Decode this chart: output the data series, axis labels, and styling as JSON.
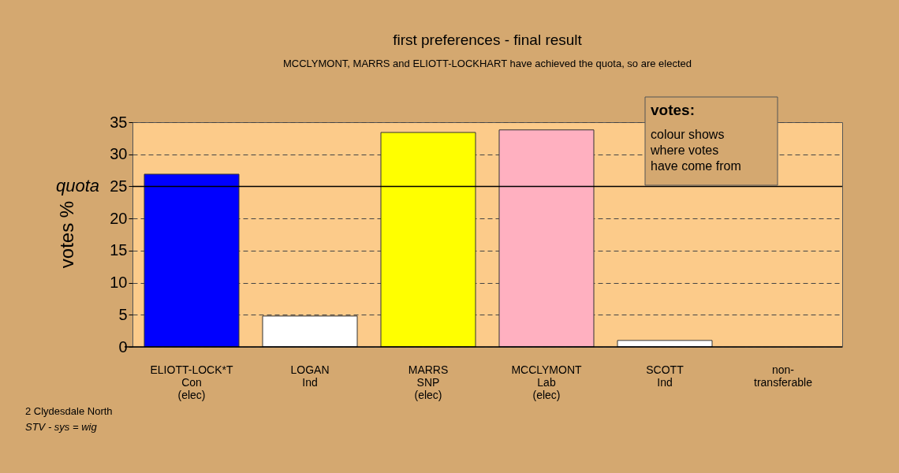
{
  "chart_data": {
    "type": "bar",
    "title": "first preferences - final result",
    "subtitle": "MCCLYMONT, MARRS and ELIOTT-LOCKHART have achieved the quota, so are elected",
    "ylabel": "votes %",
    "categories": [
      "ELIOTT-LOCK*T\nCon\n(elec)",
      "LOGAN\nInd",
      "MARRS\nSNP\n(elec)",
      "MCCLYMONT\nLab\n(elec)",
      "SCOTT\nInd",
      "non-\ntransferable"
    ],
    "values": [
      26.9,
      4.8,
      33.4,
      33.8,
      1.0,
      0
    ],
    "colors": [
      "#0000ff",
      "#ffffff",
      "#ffff00",
      "#ffb0c0",
      "#ffffff",
      "#ffffff"
    ],
    "ylim": [
      0,
      35
    ],
    "yticks": [
      0,
      5,
      10,
      15,
      20,
      25,
      30,
      35
    ],
    "grid": "y",
    "ref_lines": [
      {
        "axis": "y",
        "value": 25,
        "label": "quota",
        "color": "#000000"
      }
    ],
    "annotations": [
      "votes:",
      "colour shows\nwhere votes\nhave come from",
      "2 Clydesdale North",
      "STV - sys = wig"
    ]
  }
}
